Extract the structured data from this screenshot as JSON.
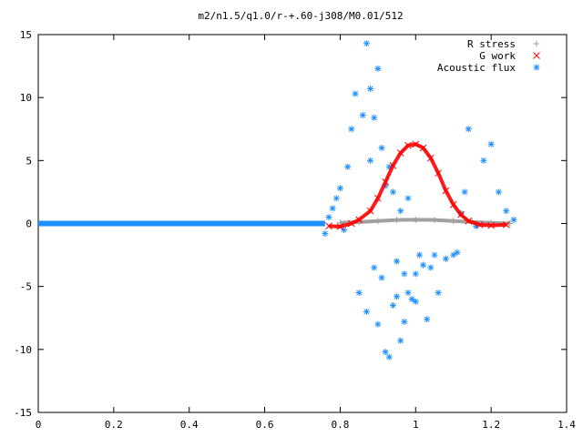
{
  "chart_data": {
    "type": "scatter",
    "title": "m2/n1.5/q1.0/r-+.60-j308/M0.01/512",
    "xlabel": "",
    "ylabel": "",
    "xlim": [
      0,
      1.4
    ],
    "ylim": [
      -15,
      15
    ],
    "xticks": [
      "0",
      "0.2",
      "0.4",
      "0.6",
      "0.8",
      "1",
      "1.2",
      "1.4"
    ],
    "yticks": [
      "15",
      "10",
      "5",
      "0",
      "-5",
      "-10",
      "-15"
    ],
    "grid": false,
    "legend_position": "top-right",
    "series": [
      {
        "name": "R stress",
        "marker": "plus",
        "color": "#a0a0a0",
        "x": [
          0.8,
          0.85,
          0.9,
          0.95,
          1.0,
          1.05,
          1.1,
          1.15,
          1.2,
          1.25
        ],
        "y": [
          0.05,
          0.12,
          0.2,
          0.28,
          0.3,
          0.28,
          0.2,
          0.12,
          0.05,
          0.0
        ]
      },
      {
        "name": "G work",
        "marker": "cross",
        "color": "#ff0000",
        "x": [
          0.77,
          0.8,
          0.83,
          0.85,
          0.88,
          0.9,
          0.92,
          0.94,
          0.96,
          0.98,
          1.0,
          1.02,
          1.04,
          1.06,
          1.08,
          1.1,
          1.12,
          1.14,
          1.17,
          1.2,
          1.24
        ],
        "y": [
          -0.2,
          -0.25,
          0.0,
          0.3,
          1.0,
          2.0,
          3.3,
          4.6,
          5.6,
          6.2,
          6.3,
          6.0,
          5.2,
          4.0,
          2.6,
          1.5,
          0.7,
          0.2,
          -0.1,
          -0.15,
          -0.1
        ]
      },
      {
        "name": "Acoustic flux",
        "marker": "star",
        "color": "#1e90ff",
        "x": [
          0.76,
          0.77,
          0.78,
          0.79,
          0.8,
          0.81,
          0.82,
          0.83,
          0.84,
          0.85,
          0.86,
          0.87,
          0.87,
          0.88,
          0.88,
          0.89,
          0.89,
          0.9,
          0.9,
          0.91,
          0.91,
          0.92,
          0.92,
          0.93,
          0.93,
          0.94,
          0.94,
          0.95,
          0.95,
          0.96,
          0.96,
          0.97,
          0.97,
          0.98,
          0.98,
          0.99,
          1.0,
          1.0,
          1.01,
          1.02,
          1.03,
          1.04,
          1.05,
          1.06,
          1.08,
          1.1,
          1.11,
          1.12,
          1.13,
          1.14,
          1.16,
          1.18,
          1.2,
          1.22,
          1.24,
          1.26
        ],
        "y": [
          -0.8,
          0.5,
          1.2,
          2.0,
          2.8,
          -0.5,
          4.5,
          7.5,
          10.3,
          -5.5,
          8.6,
          14.3,
          -7.0,
          10.7,
          5.0,
          -3.5,
          8.4,
          -8.0,
          12.3,
          -4.3,
          6.0,
          -10.2,
          3.0,
          -10.6,
          4.5,
          -6.5,
          2.5,
          -5.8,
          -3.0,
          -9.3,
          1.0,
          -7.8,
          -4.0,
          -5.5,
          2.0,
          -6.0,
          -4.0,
          -6.2,
          -2.5,
          -3.3,
          -7.6,
          -3.5,
          -2.5,
          -5.5,
          -2.8,
          -2.5,
          -2.3,
          0.8,
          2.5,
          7.5,
          -0.2,
          5.0,
          6.3,
          2.5,
          1.0,
          0.3
        ]
      }
    ]
  }
}
